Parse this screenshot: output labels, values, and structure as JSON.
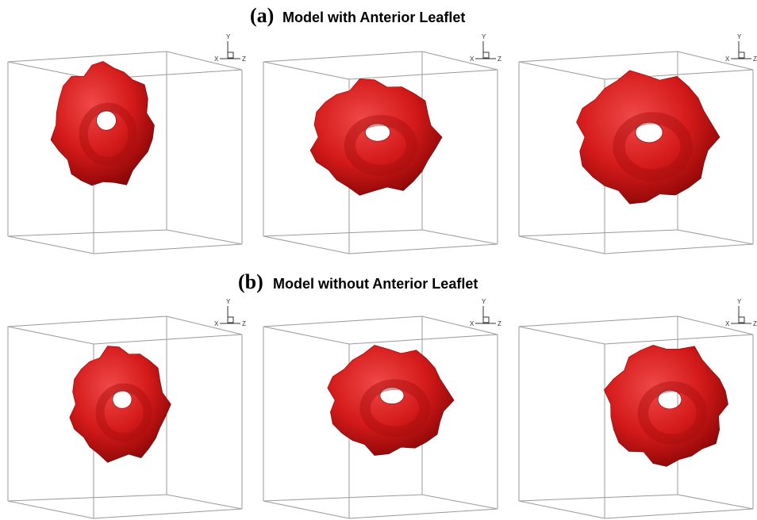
{
  "rows": [
    {
      "tag": "(a)",
      "title": "Model with Anterior Leaflet"
    },
    {
      "tag": "(b)",
      "title": "Model without Anterior Leaflet"
    }
  ],
  "triad": {
    "x": "X",
    "y": "Y",
    "z": "Z"
  }
}
